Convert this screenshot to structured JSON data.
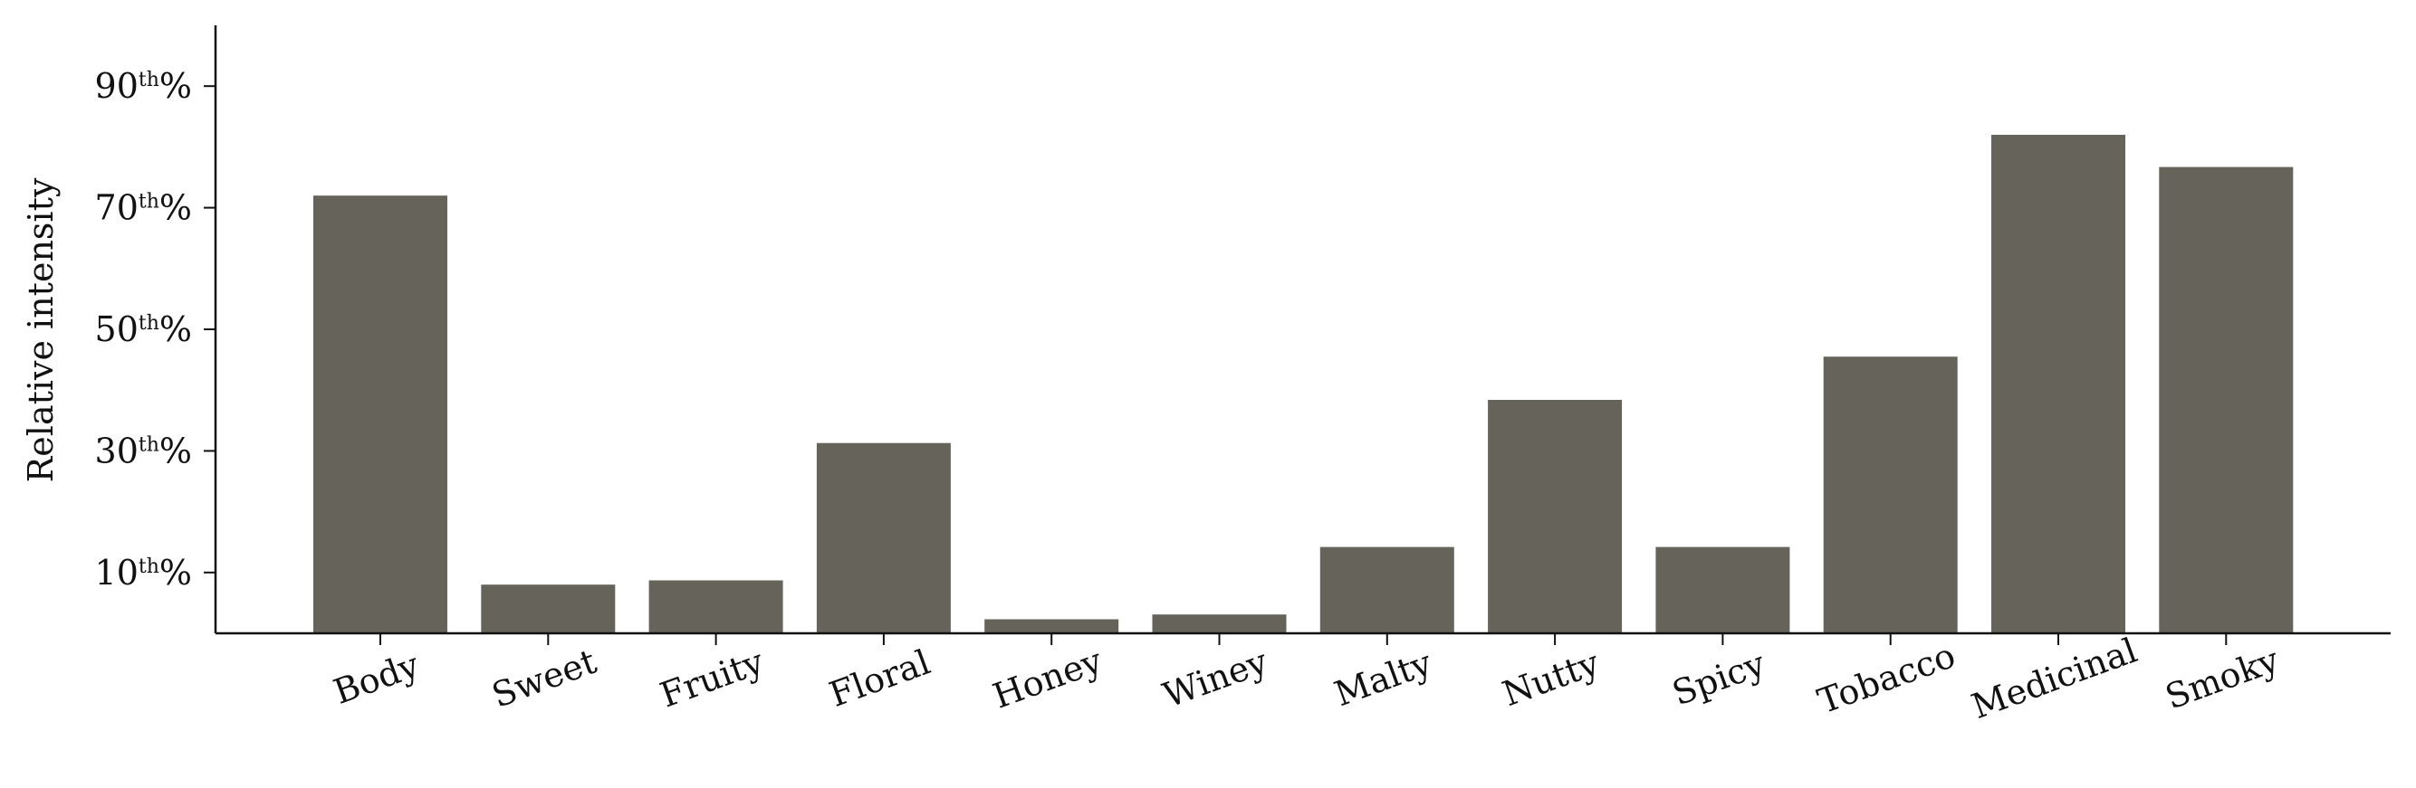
{
  "chart_data": {
    "type": "bar",
    "categories": [
      "Body",
      "Sweet",
      "Fruity",
      "Floral",
      "Honey",
      "Winey",
      "Malty",
      "Nutty",
      "Spicy",
      "Tobacco",
      "Medicinal",
      "Smoky"
    ],
    "values": [
      72,
      8,
      8.7,
      31.3,
      2.3,
      3.1,
      14.2,
      38.4,
      14.2,
      45.5,
      82,
      76.7
    ],
    "ylabel": "Relative intensity",
    "ylim": [
      0,
      100
    ],
    "yticks": [
      {
        "value": 10,
        "main": "10",
        "sup": "th",
        "suffix": "%"
      },
      {
        "value": 30,
        "main": "30",
        "sup": "th",
        "suffix": "%"
      },
      {
        "value": 50,
        "main": "50",
        "sup": "th",
        "suffix": "%"
      },
      {
        "value": 70,
        "main": "70",
        "sup": "th",
        "suffix": "%"
      },
      {
        "value": 90,
        "main": "90",
        "sup": "th",
        "suffix": "%"
      }
    ],
    "bar_color": "#66645a",
    "axis_color": "#111111",
    "grid": false,
    "xtick_label_rotation_deg": -20
  }
}
